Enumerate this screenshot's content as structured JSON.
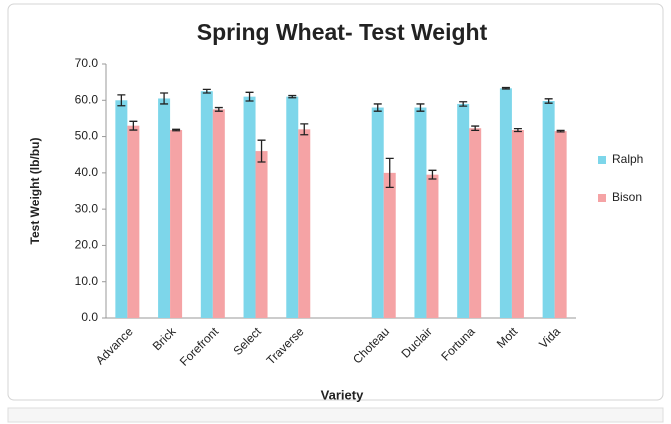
{
  "chart_data": {
    "type": "bar",
    "title": "Spring Wheat- Test Weight",
    "x_label": "Variety",
    "y_label": "Test Weight (lb/bu)",
    "categories": [
      "Advance",
      "Brick",
      "Forefront",
      "Select",
      "Traverse",
      null,
      "Choteau",
      "Duclair",
      "Fortuna",
      "Mott",
      "Vida"
    ],
    "series": [
      {
        "name": "Ralph",
        "color": "#7dd6ea",
        "values": [
          60.0,
          60.5,
          62.5,
          61.0,
          61.0,
          null,
          58.0,
          58.0,
          59.0,
          63.3,
          59.8
        ],
        "errors": [
          1.5,
          1.5,
          0.5,
          1.2,
          0.3,
          null,
          1.0,
          1.0,
          0.6,
          0.2,
          0.6
        ]
      },
      {
        "name": "Bison",
        "color": "#f5a3a5",
        "values": [
          53.0,
          51.8,
          57.5,
          46.0,
          52.0,
          null,
          40.0,
          39.5,
          52.3,
          51.8,
          51.5
        ],
        "errors": [
          1.2,
          0.2,
          0.5,
          3.0,
          1.5,
          null,
          4.0,
          1.2,
          0.6,
          0.4,
          0.2
        ]
      }
    ],
    "ylim": [
      0,
      70
    ],
    "yticks": [
      {
        "value": 0,
        "label": "0.0"
      },
      {
        "value": 10,
        "label": "10.0"
      },
      {
        "value": 20,
        "label": "20.0"
      },
      {
        "value": 30,
        "label": "30.0"
      },
      {
        "value": 40,
        "label": "40.0"
      },
      {
        "value": 50,
        "label": "50.0"
      },
      {
        "value": 60,
        "label": "60.0"
      },
      {
        "value": 70,
        "label": "70.0"
      }
    ],
    "legend": "right",
    "grid": false
  }
}
